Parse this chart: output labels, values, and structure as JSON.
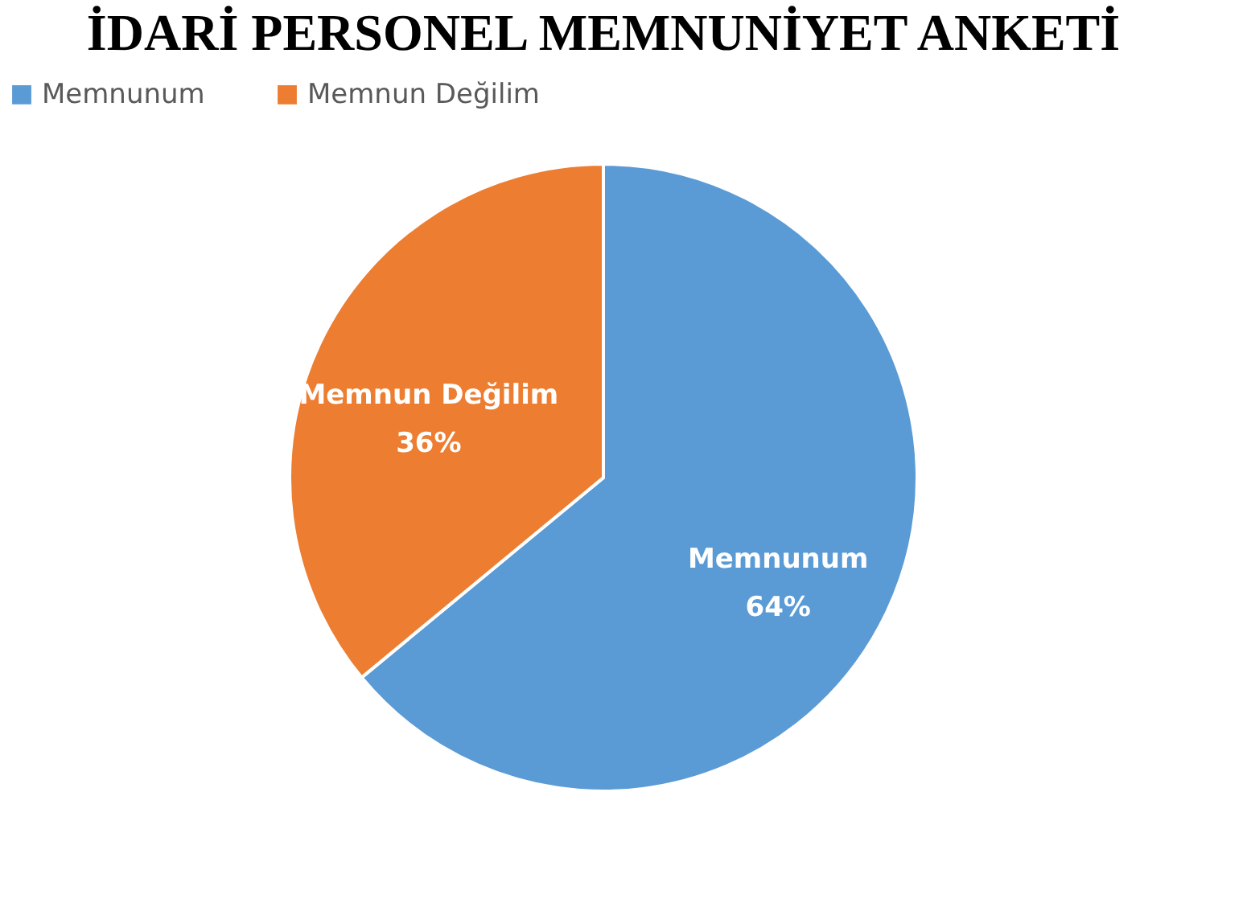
{
  "chart_data": {
    "type": "pie",
    "title": "İDARİ PERSONEL MEMNUNİYET ANKETİ",
    "categories": [
      "Memnunum",
      "Memnun Değilim"
    ],
    "values": [
      64,
      36
    ],
    "value_labels": [
      "64%",
      "36%"
    ],
    "colors": [
      "#5b9bd5",
      "#ed7d31"
    ],
    "legend": "top"
  }
}
